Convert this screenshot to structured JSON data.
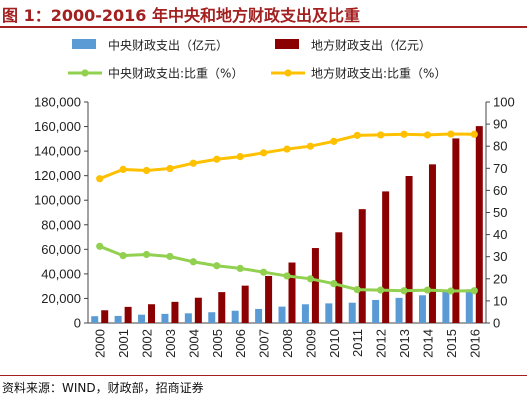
{
  "title": "图 1：2000-2016 年中央和地方财政支出及比重",
  "source": "资料来源：WIND，财政部，招商证券",
  "chart_data": {
    "type": "bar",
    "categories": [
      "2000",
      "2001",
      "2002",
      "2003",
      "2004",
      "2005",
      "2006",
      "2007",
      "2008",
      "2009",
      "2010",
      "2011",
      "2012",
      "2013",
      "2014",
      "2015",
      "2016"
    ],
    "series": [
      {
        "name": "中央财政支出（亿元）",
        "kind": "bar",
        "axis": "left",
        "color": "#5b9bd5",
        "values": [
          5520,
          5768,
          6772,
          7420,
          7894,
          8776,
          9991,
          11442,
          13344,
          15256,
          15990,
          16514,
          18765,
          20472,
          22570,
          25542,
          27404
        ]
      },
      {
        "name": "地方财政支出（亿元）",
        "kind": "bar",
        "axis": "left",
        "color": "#8b0000",
        "values": [
          10367,
          13135,
          15281,
          17230,
          20593,
          25154,
          30431,
          38340,
          49248,
          61044,
          73884,
          92734,
          107188,
          119740,
          129215,
          150336,
          160351
        ]
      },
      {
        "name": "中央财政支出:比重（%）",
        "kind": "line",
        "axis": "right",
        "color": "#92d050",
        "values": [
          34.7,
          30.5,
          31.0,
          30.1,
          27.7,
          25.9,
          24.7,
          23.0,
          21.3,
          20.0,
          17.8,
          15.1,
          14.9,
          14.6,
          14.9,
          14.5,
          14.6
        ]
      },
      {
        "name": "地方财政支出:比重（%）",
        "kind": "line",
        "axis": "right",
        "color": "#ffc000",
        "values": [
          65.3,
          69.5,
          69.0,
          69.9,
          72.3,
          74.1,
          75.3,
          77.0,
          78.7,
          80.0,
          82.2,
          84.9,
          85.1,
          85.4,
          85.1,
          85.5,
          85.4
        ]
      }
    ],
    "y_left": {
      "range": [
        0,
        180000
      ],
      "ticks": [
        "0",
        "20,000",
        "40,000",
        "60,000",
        "80,000",
        "100,000",
        "120,000",
        "140,000",
        "160,000",
        "180,000"
      ]
    },
    "y_right": {
      "range": [
        0,
        100
      ],
      "ticks": [
        "0",
        "10",
        "20",
        "30",
        "40",
        "50",
        "60",
        "70",
        "80",
        "90",
        "100"
      ]
    },
    "legend_position": "top",
    "grid": false
  },
  "colors": {
    "title": "#a32020",
    "central_bar": "#5b9bd5",
    "local_bar": "#8b0000",
    "central_line": "#92d050",
    "local_line": "#ffc000"
  }
}
